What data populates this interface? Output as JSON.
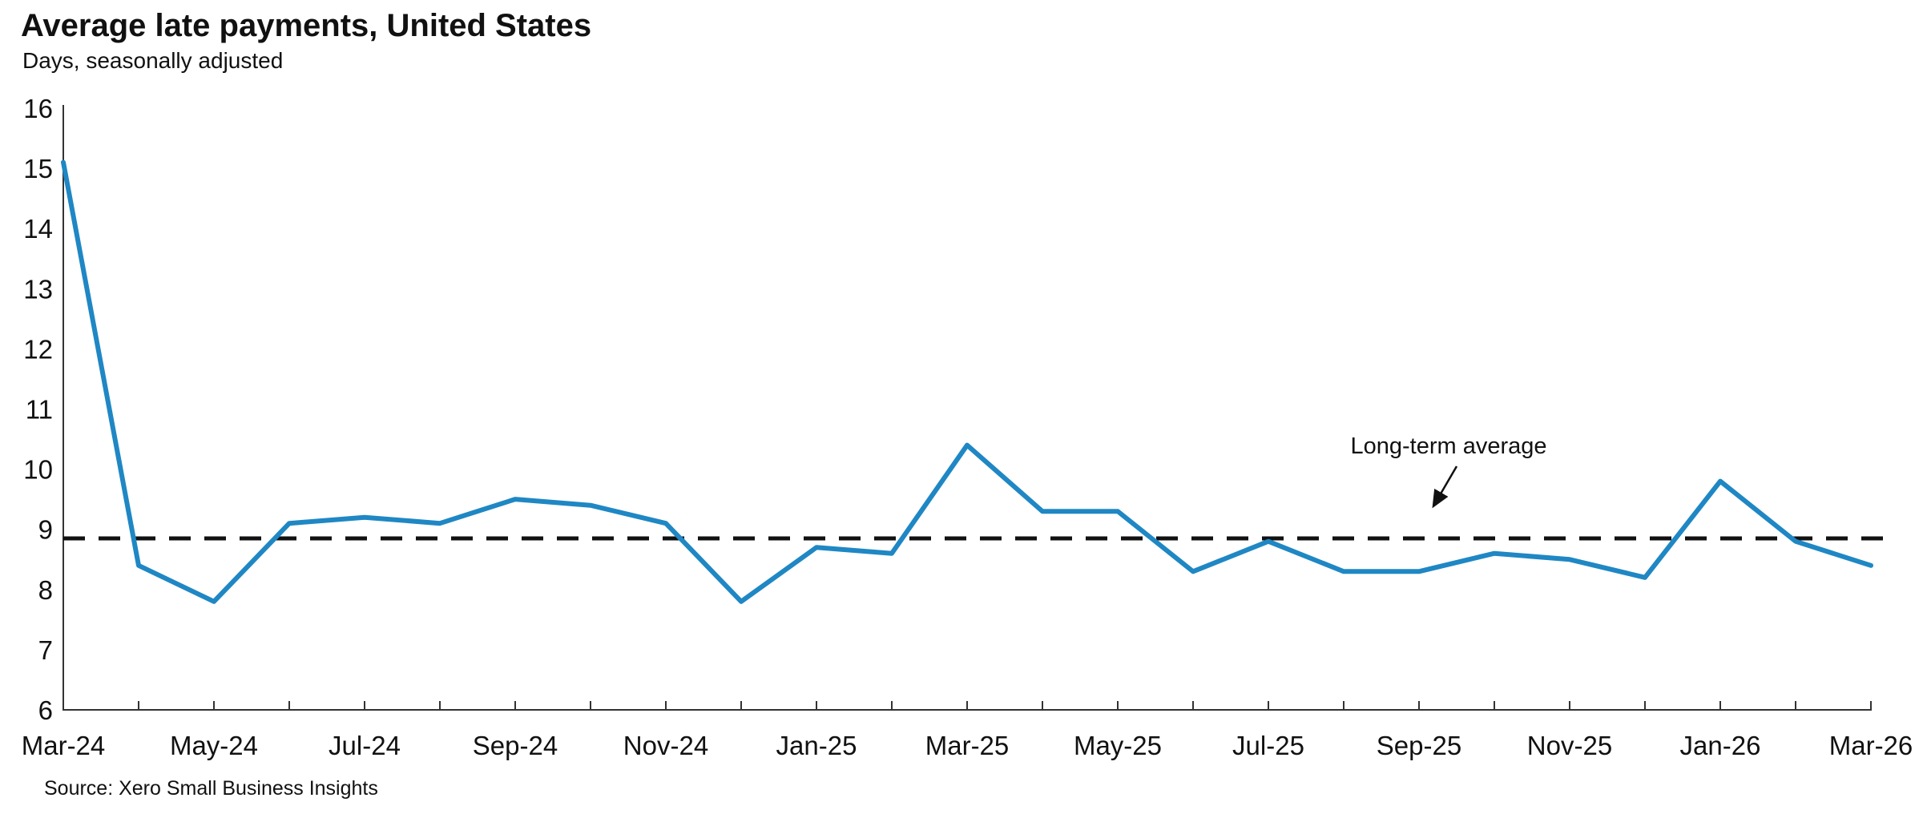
{
  "page": {
    "title": "Average late payments, United States",
    "subtitle": "Days, seasonally adjusted",
    "source": "Source: Xero Small Business Insights"
  },
  "chart_data": {
    "type": "line",
    "title": "Average late payments, United States",
    "subtitle": "Days, seasonally adjusted",
    "ylabel": "Days",
    "x_labels": [
      "Mar-24",
      "Apr-24",
      "May-24",
      "Jun-24",
      "Jul-24",
      "Aug-24",
      "Sep-24",
      "Oct-24",
      "Nov-24",
      "Dec-24",
      "Jan-25",
      "Feb-25",
      "Mar-25",
      "Apr-25",
      "May-25",
      "Jun-25",
      "Jul-25",
      "Aug-25",
      "Sep-25",
      "Oct-25",
      "Nov-25",
      "Dec-25",
      "Jan-26",
      "Feb-26",
      "Mar-26"
    ],
    "series": [
      {
        "name": "Average late payments (days, seasonally adjusted)",
        "values": [
          15.1,
          8.4,
          7.8,
          9.1,
          9.2,
          9.1,
          9.5,
          9.4,
          9.1,
          7.8,
          8.7,
          8.6,
          10.4,
          9.3,
          9.3,
          8.3,
          8.8,
          8.3,
          8.3,
          8.6,
          8.5,
          8.2,
          9.8,
          8.8,
          8.4
        ]
      }
    ],
    "visible_x_tick_labels": [
      "Mar-24",
      "May-24",
      "Jul-24",
      "Sep-24",
      "Nov-24",
      "Jan-25",
      "Mar-25",
      "May-25",
      "Jul-25",
      "Sep-25",
      "Nov-25",
      "Jan-26",
      "Mar-26"
    ],
    "y_ticks": [
      6,
      7,
      8,
      9,
      10,
      11,
      12,
      13,
      14,
      15,
      16
    ],
    "ylim": [
      6,
      16
    ],
    "grid": false,
    "legend_position": "none",
    "reference_line": {
      "label": "Long-term average",
      "value": 8.85,
      "style": "dashed"
    },
    "colors": {
      "line": "#1f87c4",
      "reference": "#111111",
      "axis": "#333333",
      "text": "#111111"
    },
    "source": "Source: Xero Small Business Insights"
  }
}
